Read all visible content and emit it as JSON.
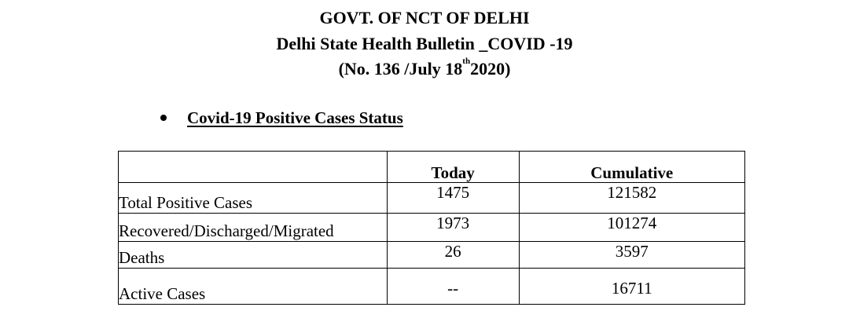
{
  "header": {
    "line1": "GOVT. OF NCT OF DELHI",
    "line2": "Delhi State Health Bulletin _COVID -19",
    "line3_prefix": "(No. 136 /July 18",
    "line3_sup": "th",
    "line3_suffix": "2020)"
  },
  "section": {
    "heading": "Covid-19 Positive Cases Status"
  },
  "table": {
    "columns": [
      "",
      "Today",
      "Cumulative"
    ],
    "rows": [
      {
        "label": "Total Positive Cases",
        "today": "1475",
        "cumulative": "121582"
      },
      {
        "label": "Recovered/Discharged/Migrated",
        "today": "1973",
        "cumulative": "101274"
      },
      {
        "label": "Deaths",
        "today": "26",
        "cumulative": "3597"
      },
      {
        "label": "Active Cases",
        "today": "--",
        "cumulative": "16711"
      }
    ]
  }
}
